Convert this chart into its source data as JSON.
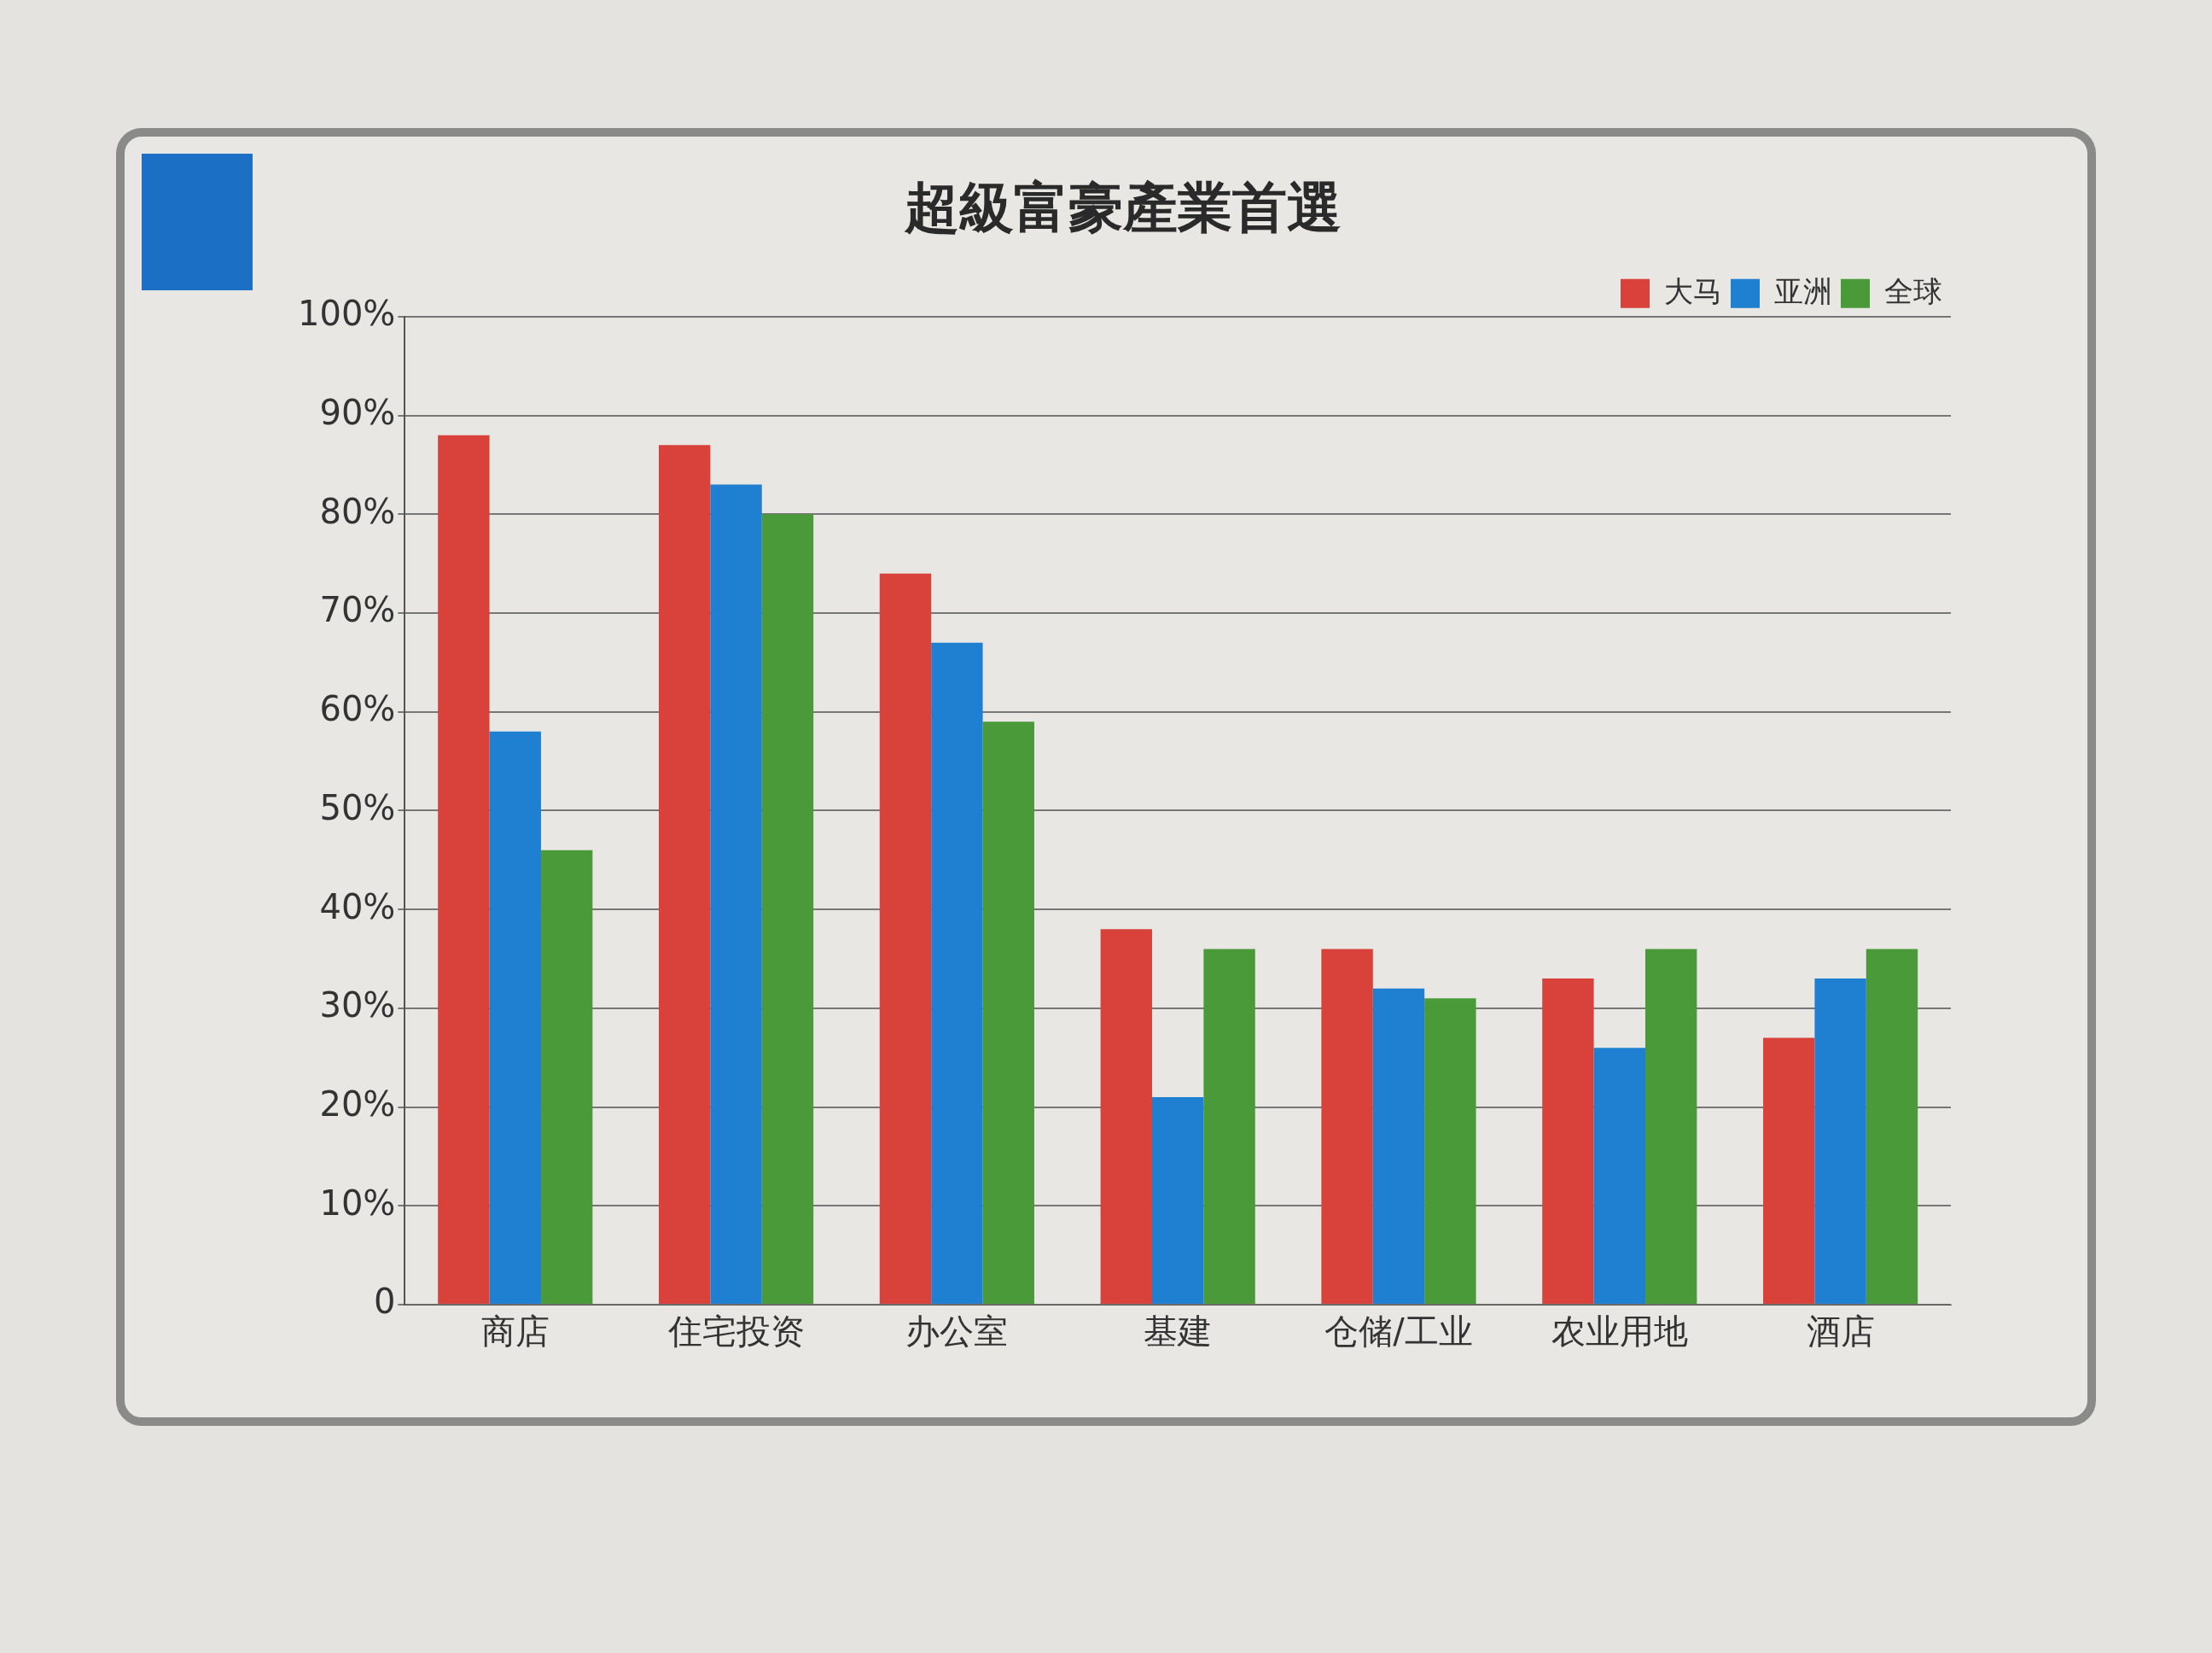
{
  "chart_data": {
    "type": "bar",
    "title": "超級富豪產業首選",
    "categories": [
      "商店",
      "住宅投资",
      "办公室",
      "基建",
      "仓储/工业",
      "农业用地",
      "酒店"
    ],
    "series": [
      {
        "name": "大马",
        "color": "#d9423a",
        "values": [
          88,
          87,
          74,
          38,
          36,
          33,
          27
        ]
      },
      {
        "name": "亚洲",
        "color": "#1f7fd0",
        "values": [
          58,
          83,
          67,
          21,
          32,
          26,
          33
        ]
      },
      {
        "name": "全球",
        "color": "#4a9a3a",
        "values": [
          46,
          80,
          59,
          36,
          31,
          36,
          36
        ]
      }
    ],
    "ylim": [
      0,
      100
    ],
    "yticks": [
      0,
      {
        "value": 10,
        "label": "10%"
      },
      {
        "value": 20,
        "label": "20%"
      },
      {
        "value": 30,
        "label": "30%"
      },
      {
        "value": 40,
        "label": "40%"
      },
      {
        "value": 50,
        "label": "50%"
      },
      {
        "value": 60,
        "label": "60%"
      },
      {
        "value": 70,
        "label": "70%"
      },
      {
        "value": 80,
        "label": "80%"
      },
      {
        "value": 90,
        "label": "90%"
      },
      {
        "value": 100,
        "label": "100%"
      }
    ],
    "grid": "y",
    "legend": "top right"
  }
}
